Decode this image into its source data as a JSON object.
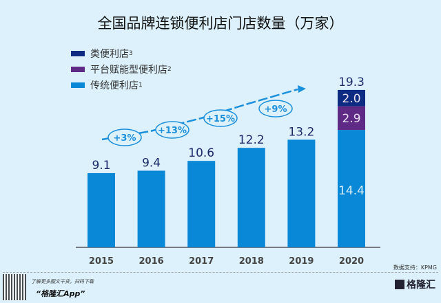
{
  "chart_data": {
    "type": "bar",
    "stacked": true,
    "title": "全国品牌连锁便利店门店数量（万家）",
    "categories": [
      "2015",
      "2016",
      "2017",
      "2018",
      "2019",
      "2020"
    ],
    "series": [
      {
        "name": "传统便利店",
        "sup": "1",
        "color": "#0a88d8",
        "values": [
          9.1,
          9.4,
          10.6,
          12.2,
          13.2,
          14.4
        ]
      },
      {
        "name": "平台赋能型便利店",
        "sup": "2",
        "color": "#5e2a86",
        "values": [
          0,
          0,
          0,
          0,
          0,
          2.9
        ]
      },
      {
        "name": "类便利店",
        "sup": "3",
        "color": "#0d2b82",
        "values": [
          0,
          0,
          0,
          0,
          0,
          2.0
        ]
      }
    ],
    "totals": [
      "9.1",
      "9.4",
      "10.6",
      "12.2",
      "13.2",
      "19.3"
    ],
    "segment_labels_2020": [
      "14.4",
      "2.9",
      "2.0"
    ],
    "growth_annotations": [
      "+3%",
      "+13%",
      "+15%",
      "+9%"
    ],
    "legend_placement": "top-left",
    "grid": false
  },
  "footer": {
    "source": "数据支持：KPMG",
    "promo_line1": "了解更多图文干货，扫码下载",
    "promo_line2": "“格隆汇App”",
    "logo": "格隆汇"
  }
}
